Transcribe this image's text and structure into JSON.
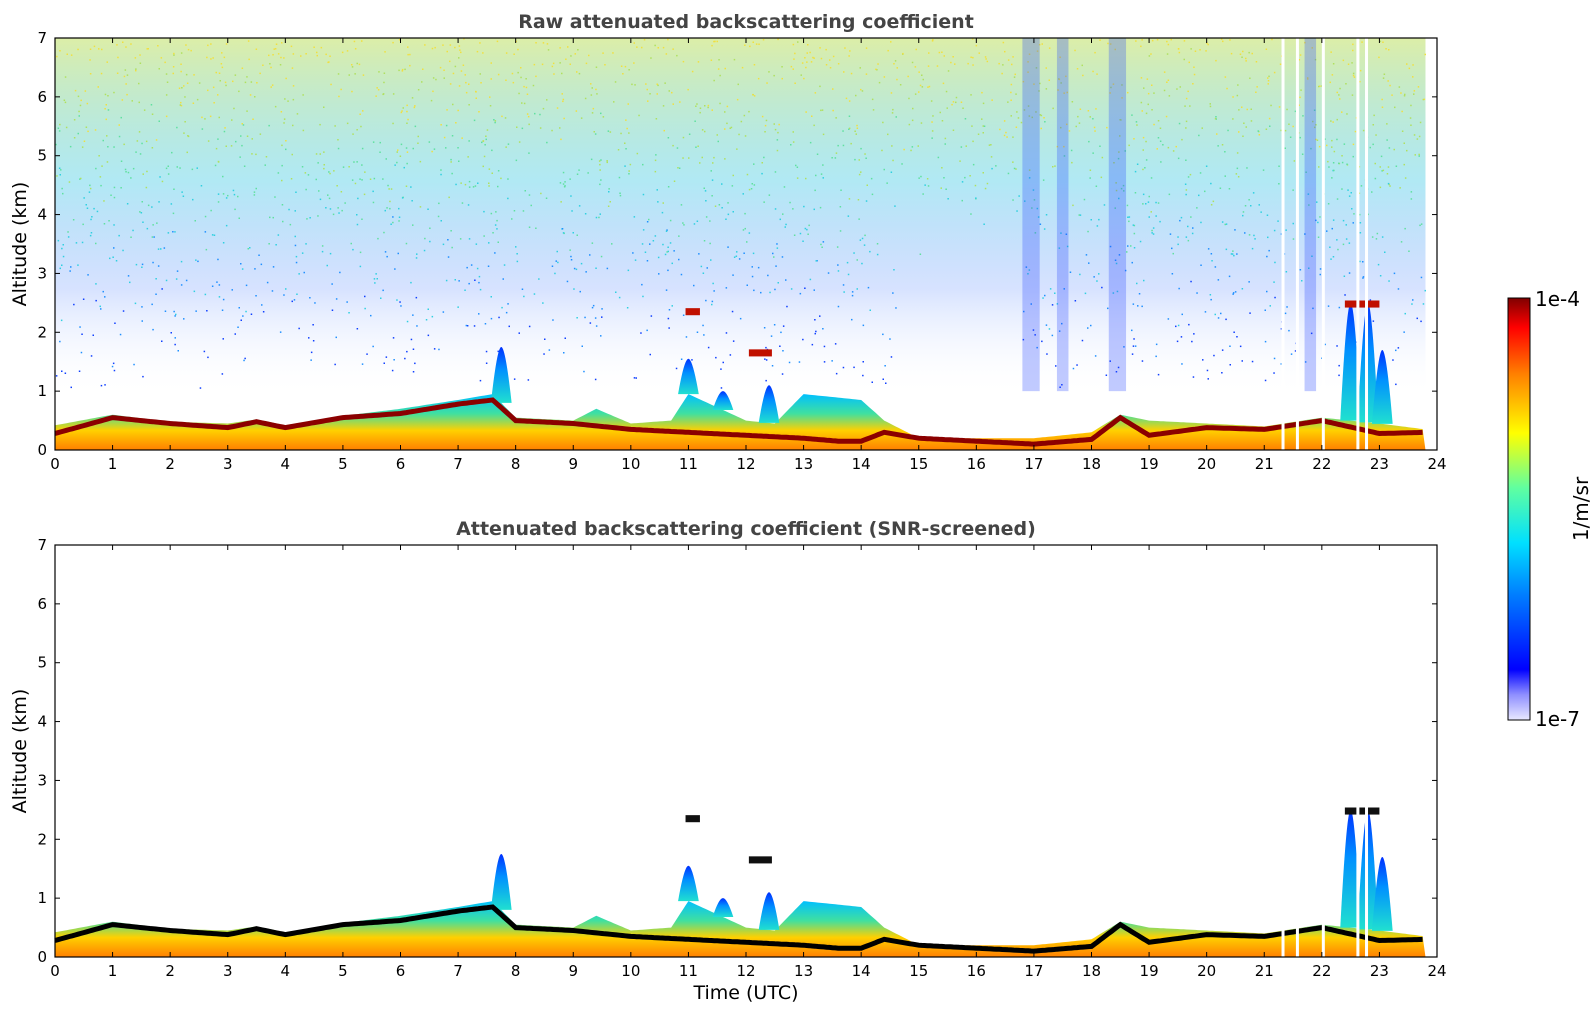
{
  "chart_data": [
    {
      "type": "heatmap",
      "title": "Raw attenuated backscattering coefficient",
      "xlabel": "",
      "ylabel": "Altitude (km)",
      "xlim": [
        0,
        24
      ],
      "ylim": [
        0,
        7
      ],
      "xticks": [
        "0",
        "1",
        "2",
        "3",
        "4",
        "5",
        "6",
        "7",
        "8",
        "9",
        "10",
        "11",
        "12",
        "13",
        "14",
        "15",
        "16",
        "17",
        "18",
        "19",
        "20",
        "21",
        "22",
        "23",
        "24"
      ],
      "yticks": [
        "0",
        "1",
        "2",
        "3",
        "4",
        "5",
        "6",
        "7"
      ],
      "noise": true,
      "features": {
        "boundary_layer_top_km": [
          [
            0,
            0.42
          ],
          [
            1,
            0.6
          ],
          [
            2,
            0.48
          ],
          [
            3,
            0.45
          ],
          [
            3.5,
            0.52
          ],
          [
            4,
            0.42
          ],
          [
            4.5,
            0.5
          ],
          [
            5,
            0.58
          ],
          [
            6,
            0.7
          ],
          [
            7,
            0.85
          ],
          [
            7.6,
            0.95
          ],
          [
            8,
            0.55
          ],
          [
            9,
            0.5
          ],
          [
            9.4,
            0.7
          ],
          [
            10,
            0.45
          ],
          [
            10.7,
            0.5
          ],
          [
            11,
            0.95
          ],
          [
            12,
            0.5
          ],
          [
            12.5,
            0.45
          ],
          [
            13,
            0.95
          ],
          [
            14,
            0.85
          ],
          [
            14.4,
            0.5
          ],
          [
            15,
            0.2
          ],
          [
            16,
            0.2
          ],
          [
            17,
            0.2
          ],
          [
            18,
            0.3
          ],
          [
            18.5,
            0.6
          ],
          [
            19,
            0.5
          ],
          [
            20,
            0.45
          ],
          [
            21,
            0.4
          ],
          [
            22,
            0.55
          ],
          [
            23,
            0.45
          ],
          [
            23.8,
            0.35
          ]
        ],
        "high_backscatter_layer_km": [
          [
            0,
            0.28
          ],
          [
            1,
            0.55
          ],
          [
            2,
            0.45
          ],
          [
            3,
            0.38
          ],
          [
            3.5,
            0.48
          ],
          [
            4,
            0.38
          ],
          [
            5,
            0.55
          ],
          [
            6,
            0.62
          ],
          [
            7,
            0.78
          ],
          [
            7.6,
            0.85
          ],
          [
            8,
            0.5
          ],
          [
            9,
            0.45
          ],
          [
            10,
            0.35
          ],
          [
            11,
            0.3
          ],
          [
            12,
            0.25
          ],
          [
            13,
            0.2
          ],
          [
            13.6,
            0.15
          ],
          [
            14,
            0.15
          ],
          [
            14.4,
            0.3
          ],
          [
            15,
            0.2
          ],
          [
            16,
            0.15
          ],
          [
            17,
            0.1
          ],
          [
            18,
            0.18
          ],
          [
            18.5,
            0.55
          ],
          [
            19,
            0.25
          ],
          [
            20,
            0.38
          ],
          [
            21,
            0.35
          ],
          [
            22,
            0.5
          ],
          [
            23,
            0.28
          ],
          [
            23.8,
            0.3
          ]
        ],
        "plumes": [
          {
            "t": 7.75,
            "top_km": 1.75
          },
          {
            "t": 11.0,
            "top_km": 1.55
          },
          {
            "t": 11.6,
            "top_km": 1.0
          },
          {
            "t": 12.4,
            "top_km": 1.1
          },
          {
            "t": 22.5,
            "top_km": 2.5
          },
          {
            "t": 22.8,
            "top_km": 2.5
          },
          {
            "t": 23.05,
            "top_km": 1.7
          }
        ],
        "elevated_layers": [
          {
            "t0": 12.05,
            "t1": 12.45,
            "alt_km": 1.65
          },
          {
            "t0": 22.4,
            "t1": 23.0,
            "alt_km": 2.48
          },
          {
            "t0": 10.95,
            "t1": 11.2,
            "alt_km": 2.35
          }
        ],
        "data_gaps_t": [
          21.3,
          21.55,
          22.0,
          22.6,
          22.75
        ]
      }
    },
    {
      "type": "heatmap",
      "title": "Attenuated backscattering coefficient (SNR-screened)",
      "xlabel": "Time (UTC)",
      "ylabel": "Altitude (km)",
      "xlim": [
        0,
        24
      ],
      "ylim": [
        0,
        7
      ],
      "xticks": [
        "0",
        "1",
        "2",
        "3",
        "4",
        "5",
        "6",
        "7",
        "8",
        "9",
        "10",
        "11",
        "12",
        "13",
        "14",
        "15",
        "16",
        "17",
        "18",
        "19",
        "20",
        "21",
        "22",
        "23",
        "24"
      ],
      "yticks": [
        "0",
        "1",
        "2",
        "3",
        "4",
        "5",
        "6",
        "7"
      ],
      "noise": false
    }
  ],
  "colorbar": {
    "label": "1/m/sr",
    "min_label": "1e-7",
    "max_label": "1e-4",
    "scale": "log",
    "colormap": "jet"
  }
}
